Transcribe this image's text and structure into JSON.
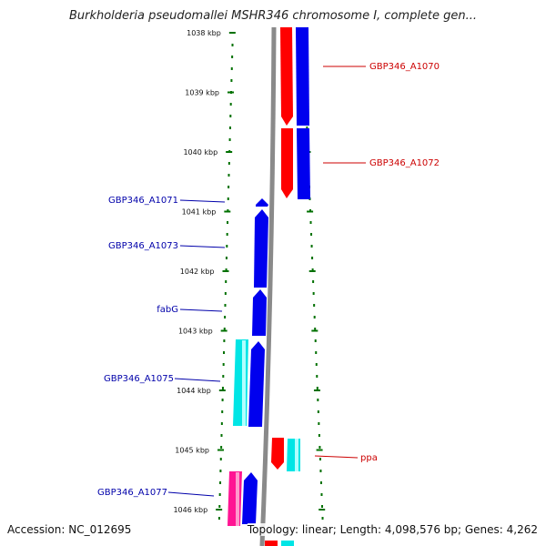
{
  "title": "Burkholderia pseudomallei MSHR346 chromosome I, complete gen...",
  "footer": {
    "accession": "Accession: NC_012695",
    "summary": "Topology: linear; Length: 4,098,576 bp; Genes: 4,262"
  },
  "colors": {
    "ruler": "#007000",
    "axis": "#8a8a8a",
    "forward_label": "#cc0000",
    "reverse_label": "#0000aa",
    "red_gene": "#ff0000",
    "blue_gene": "#0000ee",
    "cyan_gene": "#00e5e5",
    "pink_gene": "#ff1493"
  },
  "ruler": {
    "unit": "kbp",
    "ticks": [
      {
        "label": "1038 kbp",
        "value": 1038
      },
      {
        "label": "1039 kbp",
        "value": 1039
      },
      {
        "label": "1040 kbp",
        "value": 1040
      },
      {
        "label": "1041 kbp",
        "value": 1041
      },
      {
        "label": "1042 kbp",
        "value": 1042
      },
      {
        "label": "1043 kbp",
        "value": 1043
      },
      {
        "label": "1044 kbp",
        "value": 1044
      },
      {
        "label": "1045 kbp",
        "value": 1045
      },
      {
        "label": "1046 kbp",
        "value": 1046
      }
    ]
  },
  "genes": [
    {
      "id": "GBP346_A1070",
      "label": "GBP346_A1070",
      "strand": "+",
      "start": 1037.7,
      "end": 1039.6
    },
    {
      "id": "GBP346_A1072",
      "label": "GBP346_A1072",
      "strand": "+",
      "start": 1039.6,
      "end": 1040.8
    },
    {
      "id": "GBP346_A1071",
      "label": "GBP346_A1071",
      "strand": "-",
      "start": 1040.85,
      "end": 1040.95
    },
    {
      "id": "GBP346_A1073",
      "label": "GBP346_A1073",
      "strand": "-",
      "start": 1041.0,
      "end": 1042.3
    },
    {
      "id": "fabG",
      "label": "fabG",
      "strand": "-",
      "start": 1042.35,
      "end": 1043.1
    },
    {
      "id": "GBP346_A1075",
      "label": "GBP346_A1075",
      "strand": "-",
      "start": 1043.2,
      "end": 1044.6
    },
    {
      "id": "ppa",
      "label": "ppa",
      "strand": "+",
      "start": 1045.1,
      "end": 1045.6
    },
    {
      "id": "GBP346_A1077",
      "label": "GBP346_A1077",
      "strand": "-",
      "start": 1045.6,
      "end": 1046.5
    }
  ]
}
